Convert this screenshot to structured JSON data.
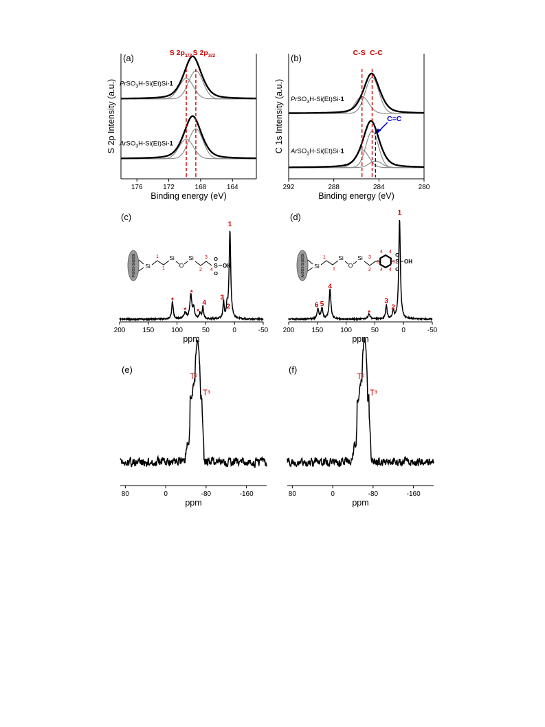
{
  "chart_data": [
    {
      "id": "a",
      "type": "line",
      "panel_label": "(a)",
      "xlabel": "Binding energy (eV)",
      "ylabel": "S 2p Intensity (a.u.)",
      "xlim": [
        178,
        161
      ],
      "x_ticks": [
        176,
        172,
        168,
        164
      ],
      "peak_labels": [
        {
          "main": "S 2p",
          "sub": "1/2",
          "x": 169.8
        },
        {
          "main": "S 2p",
          "sub": "3/2",
          "x": 168.6
        }
      ],
      "reference_lines": [
        {
          "x": 169.8,
          "color": "#cc0000"
        },
        {
          "x": 168.6,
          "color": "#cc0000"
        }
      ],
      "samples": [
        {
          "name_italic": "Pr",
          "name_rest": "SO3H-Si(Et)Si-",
          "name_bold": "1",
          "envelope": {
            "center": 169.0,
            "width": 1.15,
            "height": 1.0
          },
          "components": [
            {
              "center": 169.8,
              "width": 0.9,
              "height": 0.48
            },
            {
              "center": 168.6,
              "width": 0.9,
              "height": 0.66
            }
          ]
        },
        {
          "name_italic": "Ar",
          "name_rest": "SO3H-Si(Et)Si-",
          "name_bold": "1",
          "envelope": {
            "center": 169.0,
            "width": 1.15,
            "height": 1.0
          },
          "components": [
            {
              "center": 169.8,
              "width": 0.9,
              "height": 0.46
            },
            {
              "center": 168.6,
              "width": 0.9,
              "height": 0.7
            }
          ]
        }
      ]
    },
    {
      "id": "b",
      "type": "line",
      "panel_label": "(b)",
      "xlabel": "Binding energy (eV)",
      "ylabel": "C 1s Intensity (a.u.)",
      "xlim": [
        292,
        280
      ],
      "x_ticks": [
        292,
        288,
        284,
        280
      ],
      "peak_labels": [
        {
          "main": "C-S",
          "x": 285.5
        },
        {
          "main": "C-C",
          "x": 284.6
        }
      ],
      "reference_lines": [
        {
          "x": 285.5,
          "color": "#cc0000"
        },
        {
          "x": 284.6,
          "color": "#cc0000"
        },
        {
          "x": 284.3,
          "color": "#0000cc",
          "sample": 1
        }
      ],
      "arrow_annotation": {
        "text": "C=C",
        "color": "#0000cc"
      },
      "samples": [
        {
          "name_italic": "Pr",
          "name_rest": "SO3H-Si(Et)Si-",
          "name_bold": "1",
          "envelope": {
            "center": 284.65,
            "width": 0.75,
            "height": 1.0
          },
          "components": [
            {
              "center": 285.5,
              "width": 0.6,
              "height": 0.42
            },
            {
              "center": 284.6,
              "width": 0.6,
              "height": 0.9
            }
          ]
        },
        {
          "name_italic": "Ar",
          "name_rest": "SO3H-Si(Et)Si-",
          "name_bold": "1",
          "envelope": {
            "center": 284.7,
            "width": 0.75,
            "height": 1.0
          },
          "components": [
            {
              "center": 285.5,
              "width": 0.6,
              "height": 0.38
            },
            {
              "center": 284.6,
              "width": 0.55,
              "height": 0.78
            },
            {
              "center": 284.3,
              "width": 0.55,
              "height": 0.14
            }
          ]
        }
      ]
    },
    {
      "id": "c",
      "type": "line",
      "panel_label": "(c)",
      "xlabel": "ppm",
      "xlim": [
        200,
        -50
      ],
      "x_ticks": [
        200,
        150,
        100,
        50,
        0,
        -50
      ],
      "peaks": [
        {
          "x": 108,
          "h": 0.2,
          "w": 1.6,
          "label": "*"
        },
        {
          "x": 86,
          "h": 0.07,
          "w": 2.5,
          "label": "*"
        },
        {
          "x": 76,
          "h": 0.27,
          "w": 2.0,
          "label": "*"
        },
        {
          "x": 71,
          "h": 0.12,
          "w": 1.8
        },
        {
          "x": 60,
          "h": 0.07,
          "w": 1.5,
          "label": "*"
        },
        {
          "x": 55,
          "h": 0.14,
          "w": 1.4,
          "label": "4"
        },
        {
          "x": 19,
          "h": 0.2,
          "w": 1.2,
          "label": "3"
        },
        {
          "x": 13,
          "h": 0.13,
          "w": 1.2,
          "label": "2"
        },
        {
          "x": 8,
          "h": 1.0,
          "w": 1.7,
          "label": "1"
        }
      ],
      "structure": {
        "label_left": "PrSO3-Si(Et)Si",
        "so3h": "SO3H",
        "oh": "OH",
        "atoms": [
          "Si",
          "Si",
          "O",
          "Si"
        ],
        "numbers": [
          "1",
          "1",
          "2",
          "3",
          "4"
        ]
      }
    },
    {
      "id": "d",
      "type": "line",
      "panel_label": "(d)",
      "xlabel": "ppm",
      "xlim": [
        200,
        -50
      ],
      "x_ticks": [
        200,
        150,
        100,
        50,
        0,
        -50
      ],
      "peaks": [
        {
          "x": 149,
          "h": 0.1,
          "w": 1.8,
          "label": "6"
        },
        {
          "x": 142,
          "h": 0.11,
          "w": 1.8,
          "label": "5"
        },
        {
          "x": 128,
          "h": 0.3,
          "w": 1.8,
          "label": "4"
        },
        {
          "x": 60,
          "h": 0.05,
          "w": 2.2,
          "label": "*"
        },
        {
          "x": 30,
          "h": 0.14,
          "w": 1.5,
          "label": "3"
        },
        {
          "x": 18,
          "h": 0.08,
          "w": 1.5,
          "label": "2"
        },
        {
          "x": 7,
          "h": 1.0,
          "w": 1.7,
          "label": "1"
        }
      ],
      "structure": {
        "label_left": "ArSO3-Si(Et)Si",
        "so3h": "SO3H",
        "oh": "OH",
        "atoms": [
          "Si",
          "Si",
          "O",
          "Si"
        ],
        "numbers": [
          "1",
          "1",
          "2",
          "3",
          "4",
          "4",
          "4",
          "4",
          "5",
          "6"
        ]
      }
    },
    {
      "id": "e",
      "type": "line",
      "panel_label": "(e)",
      "xlabel": "ppm",
      "xlim": [
        90,
        -200
      ],
      "x_ticks": [
        80,
        0,
        -80,
        -160
      ],
      "peaks": [
        {
          "x": -58,
          "h": 1.0,
          "w": 5.0,
          "label": "T²"
        },
        {
          "x": -67,
          "h": 0.78,
          "w": 4.0,
          "label": "T³"
        },
        {
          "x": -45,
          "h": 0.22,
          "w": 3.0
        }
      ]
    },
    {
      "id": "f",
      "type": "line",
      "panel_label": "(f)",
      "xlabel": "ppm",
      "xlim": [
        90,
        -200
      ],
      "x_ticks": [
        80,
        0,
        -80,
        -160
      ],
      "peaks": [
        {
          "x": -58,
          "h": 1.0,
          "w": 5.0,
          "label": "T²"
        },
        {
          "x": -67,
          "h": 0.78,
          "w": 4.0,
          "label": "T³"
        },
        {
          "x": -45,
          "h": 0.2,
          "w": 3.0
        }
      ]
    }
  ]
}
